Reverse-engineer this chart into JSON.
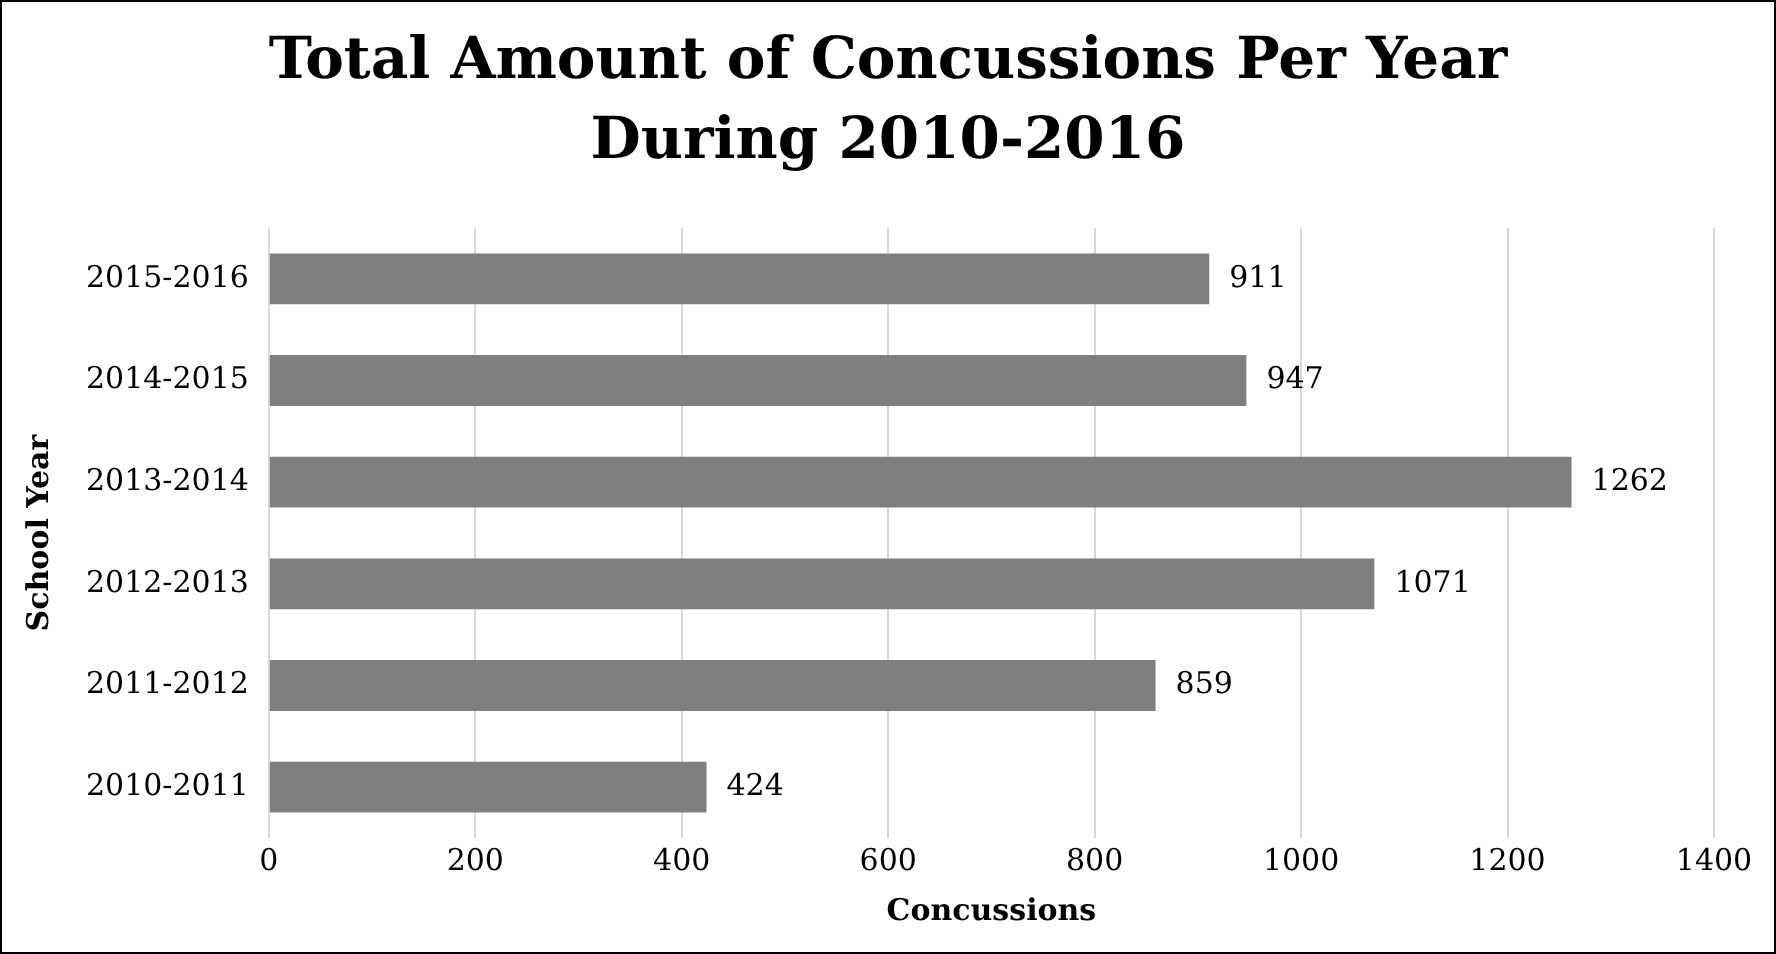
{
  "chart_data": {
    "type": "bar",
    "orientation": "horizontal",
    "title": "Total Amount of Concussions Per Year During 2010-2016",
    "xlabel": "Concussions",
    "ylabel": "School Year",
    "categories": [
      "2015-2016",
      "2014-2015",
      "2013-2014",
      "2012-2013",
      "2011-2012",
      "2010-2011"
    ],
    "values": [
      911,
      947,
      1262,
      1071,
      859,
      424
    ],
    "color": "#7f7f7f",
    "xlim": [
      0,
      1400
    ],
    "xticks": [
      0,
      200,
      400,
      600,
      800,
      1000,
      1200,
      1400
    ],
    "grid": "x",
    "data_labels": true,
    "legend": false
  }
}
